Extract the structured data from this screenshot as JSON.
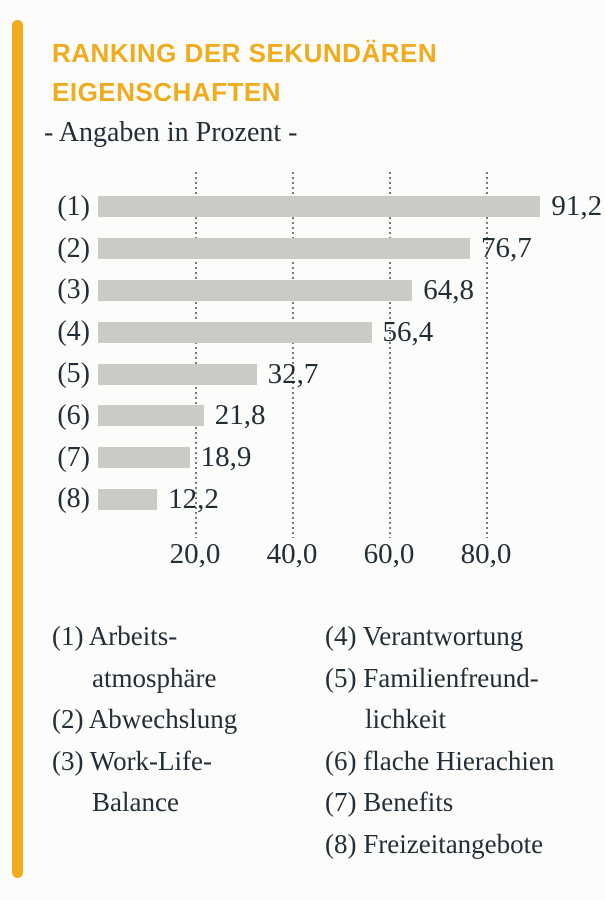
{
  "colors": {
    "accent": "#f0ac1e",
    "bar": "#cbcac7",
    "text": "#232f38",
    "gridline": "#7a7a7a",
    "background": "#fcfcfa"
  },
  "header": {
    "title": "RANKING DER SEKUNDÄREN EIGENSCHAFTEN",
    "subtitle": "- Angaben in Prozent -"
  },
  "chart_data": {
    "type": "bar",
    "orientation": "horizontal",
    "title": "Ranking der sekundären Eigenschaften",
    "subtitle": "Angaben in Prozent",
    "categories": [
      "(1)",
      "(2)",
      "(3)",
      "(4)",
      "(5)",
      "(6)",
      "(7)",
      "(8)"
    ],
    "values": [
      91.2,
      76.7,
      64.8,
      56.4,
      32.7,
      21.8,
      18.9,
      12.2
    ],
    "value_labels": [
      "91,2",
      "76,7",
      "64,8",
      "56,4",
      "32,7",
      "21,8",
      "18,9",
      "12,2"
    ],
    "x_ticks": [
      20,
      40,
      60,
      80
    ],
    "x_tick_labels": [
      "20,0",
      "40,0",
      "60,0",
      "80,0"
    ],
    "xlim": [
      0,
      100
    ],
    "xlabel": "",
    "ylabel": "",
    "grid": "dotted-vertical",
    "legend_position": "below"
  },
  "legend": {
    "columns": [
      {
        "items": [
          "(1) Arbeits-\natmosphäre",
          "(2) Abwechslung",
          "(3) Work-Life-\nBalance"
        ]
      },
      {
        "items": [
          "(4) Verantwortung",
          "(5) Familienfreund-\nlichkeit",
          "(6) flache Hierachien",
          "(7) Benefits",
          "(8) Freizeitangebote"
        ]
      }
    ]
  }
}
